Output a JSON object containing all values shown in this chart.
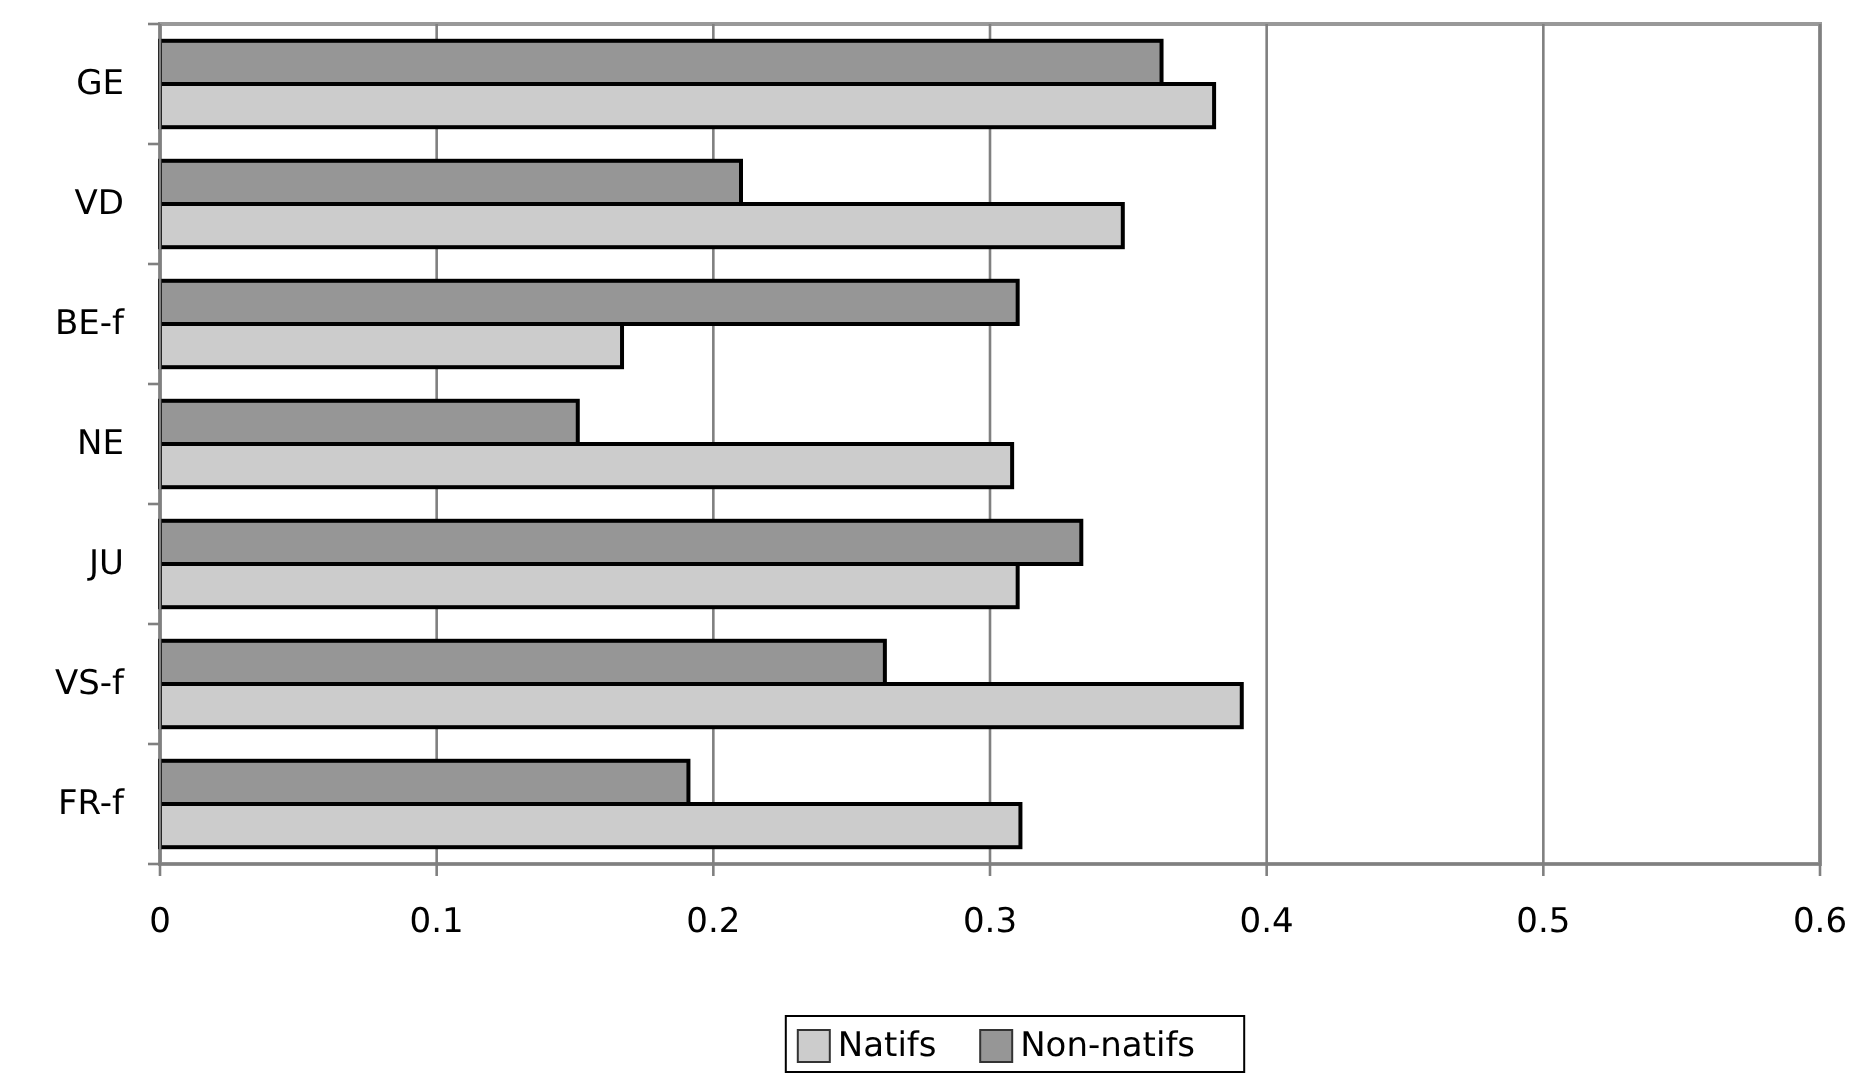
{
  "chart_data": {
    "type": "bar",
    "orientation": "horizontal",
    "categories": [
      "GE",
      "VD",
      "BE-f",
      "NE",
      "JU",
      "VS-f",
      "FR-f"
    ],
    "series": [
      {
        "name": "Natifs",
        "color": "#cccccc",
        "values": [
          0.381,
          0.348,
          0.167,
          0.308,
          0.31,
          0.391,
          0.311
        ]
      },
      {
        "name": "Non-natifs",
        "color": "#969696",
        "values": [
          0.362,
          0.21,
          0.31,
          0.151,
          0.333,
          0.262,
          0.191
        ]
      }
    ],
    "xlim": [
      0,
      0.6
    ],
    "xticks": [
      0,
      0.1,
      0.2,
      0.3,
      0.4,
      0.5,
      0.6
    ],
    "grid": "x",
    "legend": "bottom"
  }
}
